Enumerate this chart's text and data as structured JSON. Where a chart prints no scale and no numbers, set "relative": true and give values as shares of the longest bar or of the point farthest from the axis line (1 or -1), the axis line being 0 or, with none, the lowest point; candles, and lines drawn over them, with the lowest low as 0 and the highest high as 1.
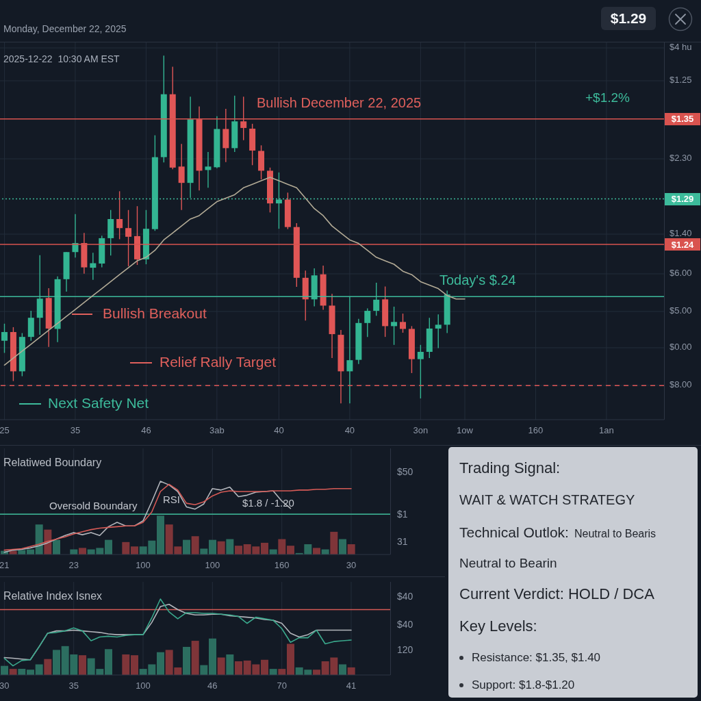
{
  "chart_data": [
    {
      "type": "candlestick",
      "relative": true,
      "subtitle": "Monday, December 22, 2025",
      "annotations": [
        "2025-12-22  10:30 AM EST",
        "Bullish December 22, 2025",
        "+$1.2%",
        "Today's $.24",
        "Bullish Breakout",
        "Relief Rally Target",
        "Next Safety Net",
        "$1.29",
        "$4 hu",
        "$1.25",
        "$2.30",
        "$1.40",
        "$6.00",
        "$5.00",
        "$0.00",
        "$8.00",
        "$1.35",
        "$1.29",
        "$1.24"
      ],
      "categories": [
        "25",
        null,
        null,
        null,
        null,
        null,
        null,
        null,
        "35",
        null,
        null,
        null,
        null,
        null,
        null,
        null,
        "46",
        null,
        null,
        null,
        null,
        null,
        null,
        null,
        "3ab",
        null,
        null,
        null,
        null,
        null,
        null,
        "40",
        null,
        null,
        null,
        null,
        null,
        null,
        null,
        "40",
        null,
        null,
        null,
        null,
        null,
        null,
        null,
        "3on",
        null,
        null,
        null,
        null,
        "1ow",
        null,
        null,
        null,
        null,
        null,
        null,
        null,
        "160",
        null,
        null,
        null,
        null,
        null,
        null,
        null,
        "1an",
        null,
        null,
        null,
        null,
        null,
        null
      ],
      "ohlc": [
        [
          0.18,
          0.229,
          0.145,
          0.205
        ],
        [
          0.205,
          0.219,
          0.064,
          0.092
        ],
        [
          0.092,
          0.202,
          0.078,
          0.191
        ],
        [
          0.191,
          0.266,
          0.18,
          0.246
        ],
        [
          0.246,
          0.426,
          0.197,
          0.301
        ],
        [
          0.303,
          0.331,
          0.162,
          0.215
        ],
        [
          0.214,
          0.365,
          0.176,
          0.357
        ],
        [
          0.357,
          0.435,
          0.321,
          0.435
        ],
        [
          0.435,
          0.544,
          0.419,
          0.461
        ],
        [
          0.461,
          0.49,
          0.373,
          0.391
        ],
        [
          0.39,
          0.433,
          0.355,
          0.403
        ],
        [
          0.402,
          0.482,
          0.391,
          0.475
        ],
        [
          0.475,
          0.556,
          0.425,
          0.53
        ],
        [
          0.53,
          0.61,
          0.472,
          0.504
        ],
        [
          0.504,
          0.556,
          0.394,
          0.479
        ],
        [
          0.481,
          0.567,
          0.398,
          0.414
        ],
        [
          0.414,
          0.556,
          0.4,
          0.502
        ],
        [
          0.501,
          0.771,
          0.496,
          0.708
        ],
        [
          0.708,
          1,
          0.693,
          0.889
        ],
        [
          0.889,
          0.968,
          0.673,
          0.678
        ],
        [
          0.681,
          0.746,
          0.556,
          0.634
        ],
        [
          0.634,
          0.882,
          0.591,
          0.817
        ],
        [
          0.817,
          0.854,
          0.612,
          0.669
        ],
        [
          0.671,
          0.723,
          0.62,
          0.681
        ],
        [
          0.679,
          0.826,
          0.676,
          0.789
        ],
        [
          0.789,
          0.847,
          0.694,
          0.734
        ],
        [
          0.734,
          0.885,
          0.723,
          0.811
        ],
        [
          0.811,
          0.882,
          0.757,
          0.792
        ],
        [
          0.79,
          0.804,
          0.685,
          0.727
        ],
        [
          0.726,
          0.742,
          0.644,
          0.669
        ],
        [
          0.669,
          0.678,
          0.549,
          0.575
        ],
        [
          0.575,
          0.664,
          0.502,
          0.586
        ],
        [
          0.586,
          0.606,
          0.501,
          0.507
        ],
        [
          0.507,
          0.518,
          0.335,
          0.361
        ],
        [
          0.361,
          0.382,
          0.238,
          0.299
        ],
        [
          0.299,
          0.388,
          0.279,
          0.368
        ],
        [
          0.371,
          0.396,
          0.269,
          0.281
        ],
        [
          0.281,
          0.315,
          0.13,
          0.199
        ],
        [
          0.197,
          0.211,
          0,
          0.092
        ],
        [
          0.092,
          0.308,
          0,
          0.124
        ],
        [
          0.125,
          0.243,
          0.113,
          0.231
        ],
        [
          0.231,
          0.273,
          0.191,
          0.266
        ],
        [
          0.266,
          0.347,
          0.252,
          0.298
        ],
        [
          0.299,
          0.336,
          0.191,
          0.222
        ],
        [
          0.222,
          0.278,
          0.168,
          0.234
        ],
        [
          0.234,
          0.258,
          0.203,
          0.214
        ],
        [
          0.214,
          0.222,
          0.087,
          0.127
        ],
        [
          0.127,
          0.168,
          0.014,
          0.148
        ],
        [
          0.148,
          0.246,
          0.13,
          0.215
        ],
        [
          0.215,
          0.256,
          0.159,
          0.226
        ],
        [
          0.226,
          0.324,
          0.202,
          0.313
        ],
        null,
        null,
        null,
        null,
        null,
        null,
        null,
        null,
        null,
        null,
        null,
        null,
        null,
        null,
        null,
        null,
        null,
        null,
        null,
        null,
        null,
        null,
        null,
        null
      ],
      "colors": [
        "#33b592",
        "#e05656",
        "#33b592",
        "#33b592",
        "#33b592",
        "#e05656",
        "#33b592",
        "#33b592",
        "#33b592",
        "#e05656",
        "#33b592",
        "#33b592",
        "#33b592",
        "#e05656",
        "#e05656",
        "#e05656",
        "#33b592",
        "#33b592",
        "#33b592",
        "#e05656",
        "#e05656",
        "#33b592",
        "#e05656",
        "#33b592",
        "#33b592",
        "#e05656",
        "#33b592",
        "#e05656",
        "#e05656",
        "#e05656",
        "#e05656",
        "#33b592",
        "#e05656",
        "#e05656",
        "#e05656",
        "#33b592",
        "#e05656",
        "#e05656",
        "#e05656",
        "#33b592",
        "#33b592",
        "#33b592",
        "#33b592",
        "#e05656",
        "#33b592",
        "#e05656",
        "#e05656",
        "#33b592",
        "#33b592",
        "#33b592",
        "#33b592",
        null,
        null,
        null,
        null,
        null,
        null,
        null,
        null,
        null,
        null,
        null,
        null,
        null,
        null,
        null,
        null,
        null,
        null,
        null,
        null,
        null,
        null,
        null,
        null
      ],
      "series": [
        {
          "type": "line",
          "color": "#b3ab96",
          "values": [
            0.11,
            0.13,
            0.15,
            0.17,
            0.19,
            0.21,
            0.23,
            0.25,
            0.27,
            0.29,
            0.31,
            0.33,
            0.35,
            0.37,
            0.39,
            0.41,
            0.42,
            0.44,
            0.47,
            0.49,
            0.51,
            0.53,
            0.54,
            0.56,
            0.58,
            0.59,
            0.6,
            0.62,
            0.63,
            0.64,
            0.65,
            0.64,
            0.63,
            0.62,
            0.59,
            0.56,
            0.54,
            0.51,
            0.49,
            0.47,
            0.46,
            0.44,
            0.42,
            0.41,
            0.4,
            0.38,
            0.37,
            0.35,
            0.34,
            0.33,
            0.31,
            0.3,
            0.3,
            null,
            null,
            null,
            null,
            null,
            null,
            null,
            null,
            null,
            null,
            null,
            null,
            null,
            null,
            null,
            null,
            null,
            null,
            null,
            null,
            null,
            null
          ]
        }
      ],
      "grid": true,
      "ref_lines": [
        {
          "axis": "y",
          "value": 0.818,
          "color": "#d9534f"
        },
        {
          "axis": "y",
          "value": 0.588,
          "color": "#3dbb9b",
          "line_style": "dotted"
        },
        {
          "axis": "y",
          "value": 0.457,
          "color": "#d9534f"
        },
        {
          "axis": "y",
          "value": 0.307,
          "color": "#3dbb9b"
        },
        {
          "axis": "y",
          "value": 0.051,
          "color": "#e05656",
          "line_style": "dashed"
        }
      ]
    },
    {
      "type": "bar",
      "relative": true,
      "title": "Relatiwed Boundary",
      "annotations": [
        "Oversold Boundary",
        "RSI",
        "$1.8 / -1.20",
        "$50",
        "$1",
        "31"
      ],
      "categories": [
        "21",
        null,
        null,
        null,
        null,
        null,
        null,
        null,
        "23",
        null,
        null,
        null,
        null,
        null,
        null,
        null,
        "100",
        null,
        null,
        null,
        null,
        null,
        null,
        null,
        "100",
        null,
        null,
        null,
        null,
        null,
        null,
        null,
        "160",
        null,
        null,
        null,
        null,
        null,
        null,
        null,
        "30",
        null,
        null,
        null,
        null
      ],
      "values": [
        0.05,
        0.05,
        0.06,
        0.07,
        0.41,
        0.34,
        0.2,
        null,
        0.07,
        0.09,
        0.07,
        0.09,
        0.2,
        null,
        0.17,
        0.11,
        0.11,
        0.19,
        0.53,
        0.41,
        0.11,
        0.2,
        0.25,
        0.08,
        0.2,
        0.18,
        0.21,
        0.12,
        0.14,
        0.11,
        0.16,
        0.07,
        0.21,
        0.12,
        0.02,
        0.14,
        0.09,
        0.07,
        0.31,
        0.21,
        0.14,
        null,
        null,
        null,
        null
      ],
      "colors": [
        "#2c6e60",
        "#7f3539",
        "#2c6e60",
        "#2c6e60",
        "#2c6e60",
        "#7f3539",
        "#2c6e60",
        null,
        "#2c6e60",
        "#7f3539",
        "#2c6e60",
        "#2c6e60",
        "#2c6e60",
        null,
        "#7f3539",
        "#7f3539",
        "#2c6e60",
        "#2c6e60",
        "#2c6e60",
        "#7f3539",
        "#7f3539",
        "#2c6e60",
        "#7f3539",
        "#2c6e60",
        "#2c6e60",
        "#7f3539",
        "#2c6e60",
        "#7f3539",
        "#7f3539",
        "#7f3539",
        "#7f3539",
        "#2c6e60",
        "#7f3539",
        "#7f3539",
        "#2c6e60",
        "#2c6e60",
        "#7f3539",
        "#2c6e60",
        "#7f3539",
        "#2c6e60",
        "#7f3539",
        null,
        null,
        null,
        null
      ],
      "series": [
        {
          "type": "line",
          "color": "#b3b6bc",
          "values": [
            0.03,
            0.06,
            0.07,
            0.09,
            0.12,
            0.16,
            0.21,
            0.26,
            0.3,
            0.27,
            0.3,
            0.26,
            0.38,
            0.44,
            0.39,
            0.39,
            0.46,
            0.72,
            1,
            0.95,
            0.86,
            0.65,
            0.62,
            0.69,
            0.9,
            0.88,
            0.92,
            0.79,
            0.81,
            0.85,
            0.86,
            0.87,
            0.73,
            0.63,
            null,
            null,
            null,
            null,
            null,
            null,
            null,
            null,
            null,
            null,
            null
          ]
        },
        {
          "type": "line",
          "color": "#d65a56",
          "values": [
            0.06,
            0.07,
            0.08,
            0.11,
            0.14,
            0.18,
            0.21,
            0.24,
            0.28,
            0.31,
            0.34,
            0.36,
            0.37,
            0.38,
            0.39,
            0.39,
            0.44,
            0.58,
            0.86,
            0.96,
            0.88,
            0.7,
            0.68,
            0.72,
            0.8,
            0.85,
            0.87,
            0.86,
            0.86,
            0.86,
            0.86,
            0.87,
            0.87,
            0.87,
            0.88,
            0.88,
            0.89,
            0.89,
            0.9,
            0.9,
            0.9,
            null,
            null,
            null,
            null
          ]
        }
      ],
      "ref_lines": [
        {
          "axis": "y",
          "value": 0.55,
          "color": "#3aa88c"
        }
      ],
      "grid": true
    },
    {
      "type": "bar",
      "relative": true,
      "title": "Relative Index Isnex",
      "annotations": [
        "$40",
        "$40",
        "120"
      ],
      "categories": [
        "30",
        null,
        null,
        null,
        null,
        null,
        null,
        null,
        "35",
        null,
        null,
        null,
        null,
        null,
        null,
        null,
        "100",
        null,
        null,
        null,
        null,
        null,
        null,
        null,
        "46",
        null,
        null,
        null,
        null,
        null,
        null,
        null,
        "70",
        null,
        null,
        null,
        null,
        null,
        null,
        null,
        "41",
        null,
        null,
        null,
        null
      ],
      "values": [
        0.12,
        0.08,
        0.08,
        0.07,
        0.14,
        0.21,
        0.33,
        0.38,
        0.27,
        0.26,
        0.22,
        0.08,
        0.34,
        null,
        0.27,
        0.26,
        0.08,
        0.14,
        0.3,
        0.33,
        0.1,
        0.37,
        0.45,
        0.13,
        0.48,
        0.23,
        0.27,
        0.18,
        0.19,
        0.14,
        0.2,
        0.08,
        0.08,
        0.41,
        0.1,
        0.07,
        0.07,
        0.18,
        0.23,
        0.14,
        0.1,
        null,
        null,
        null,
        null
      ],
      "colors": [
        "#2c6e60",
        "#7f3539",
        "#2c6e60",
        "#2c6e60",
        "#2c6e60",
        "#7f3539",
        "#2c6e60",
        "#2c6e60",
        "#2c6e60",
        "#7f3539",
        "#2c6e60",
        "#2c6e60",
        "#2c6e60",
        null,
        "#7f3539",
        "#7f3539",
        "#2c6e60",
        "#2c6e60",
        "#2c6e60",
        "#7f3539",
        "#7f3539",
        "#2c6e60",
        "#7f3539",
        "#2c6e60",
        "#2c6e60",
        "#7f3539",
        "#2c6e60",
        "#7f3539",
        "#7f3539",
        "#7f3539",
        "#7f3539",
        "#2c6e60",
        "#7f3539",
        "#7f3539",
        "#2c6e60",
        "#2c6e60",
        "#7f3539",
        "#7f3539",
        "#7f3539",
        "#2c6e60",
        "#7f3539",
        null,
        null,
        null,
        null
      ],
      "series": [
        {
          "type": "line",
          "color": "#b3b6bc",
          "values": [
            0.23,
            0.22,
            0.21,
            0.2,
            0.37,
            0.55,
            0.58,
            0.58,
            0.59,
            0.58,
            0.57,
            0.56,
            0.54,
            0.53,
            0.53,
            0.53,
            0.53,
            0.69,
            0.9,
            0.93,
            0.86,
            0.81,
            0.79,
            0.79,
            0.8,
            0.8,
            0.78,
            0.77,
            0.76,
            0.75,
            0.73,
            0.72,
            0.68,
            0.55,
            0.5,
            0.53,
            0.59,
            0.59,
            0.59,
            0.59,
            0.59,
            null,
            null,
            null,
            null
          ]
        },
        {
          "type": "line",
          "color": "#3aa88c",
          "values": [
            0.22,
            0.12,
            0.19,
            0.2,
            0.37,
            0.55,
            0.56,
            0.58,
            0.62,
            0.58,
            0.45,
            0.5,
            0.51,
            0.5,
            0.52,
            0.53,
            0.53,
            0.75,
            1,
            0.83,
            0.74,
            0.82,
            0.82,
            0.81,
            0.81,
            0.8,
            0.79,
            0.77,
            0.68,
            0.76,
            0.74,
            0.72,
            0.61,
            0.43,
            0.49,
            0.49,
            0.59,
            0.41,
            0.44,
            0.45,
            0.46,
            null,
            null,
            null,
            null
          ]
        }
      ],
      "ref_lines": [
        {
          "axis": "y",
          "value": 0.86,
          "color": "#d65a56"
        }
      ],
      "grid": true
    },
    {
      "type": "other",
      "title": "Trading Signal:",
      "annotations": [
        "WAIT & WATCH STRATEGY",
        "Technical Outlok:",
        "Neutral to Bearis",
        "Neutral to Bearin",
        "Current Verdict: HOLD / DCA",
        "Key Levels:",
        "Resistance: $1.35, $1.40",
        "Support: $1.8-$1.20"
      ]
    }
  ]
}
